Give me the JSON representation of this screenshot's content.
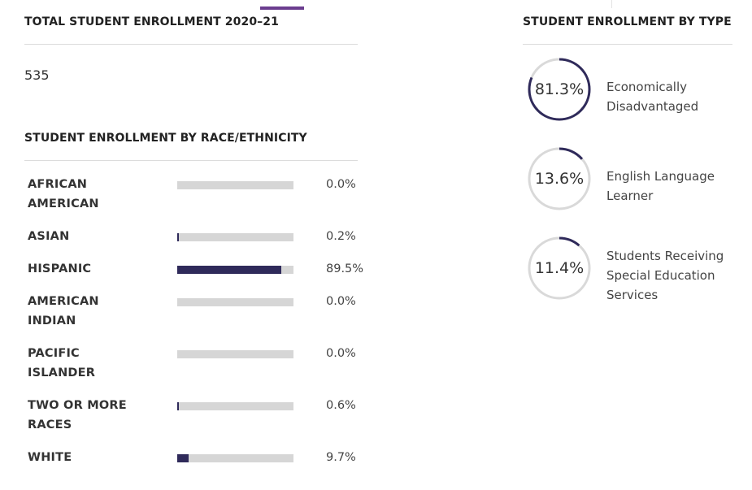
{
  "enrollment": {
    "title": "TOTAL STUDENT ENROLLMENT 2020–21",
    "total": "535"
  },
  "race": {
    "title": "STUDENT ENROLLMENT BY RACE/ETHNICITY",
    "items": [
      {
        "label": "AFRICAN AMERICAN",
        "pct": "0.0%",
        "value": 0.0
      },
      {
        "label": "ASIAN",
        "pct": "0.2%",
        "value": 0.2
      },
      {
        "label": "HISPANIC",
        "pct": "89.5%",
        "value": 89.5
      },
      {
        "label": "AMERICAN INDIAN",
        "pct": "0.0%",
        "value": 0.0
      },
      {
        "label": "PACIFIC ISLANDER",
        "pct": "0.0%",
        "value": 0.0
      },
      {
        "label": "TWO OR MORE RACES",
        "pct": "0.6%",
        "value": 0.6
      },
      {
        "label": "WHITE",
        "pct": "9.7%",
        "value": 9.7
      }
    ]
  },
  "types": {
    "title": "STUDENT ENROLLMENT BY TYPE",
    "items": [
      {
        "pct": "81.3%",
        "value": 81.3,
        "label": "Economically Disadvantaged"
      },
      {
        "pct": "13.6%",
        "value": 13.6,
        "label": "English Language Learner"
      },
      {
        "pct": "11.4%",
        "value": 11.4,
        "label": "Students Receiving Special Education Services"
      }
    ]
  },
  "colors": {
    "bar_fill": "#2f2a5a",
    "bar_track": "#d6d6d6",
    "ring_track": "#d9d9d9",
    "ring_fill": "#2f2a5a",
    "accent": "#6b3d8f"
  }
}
